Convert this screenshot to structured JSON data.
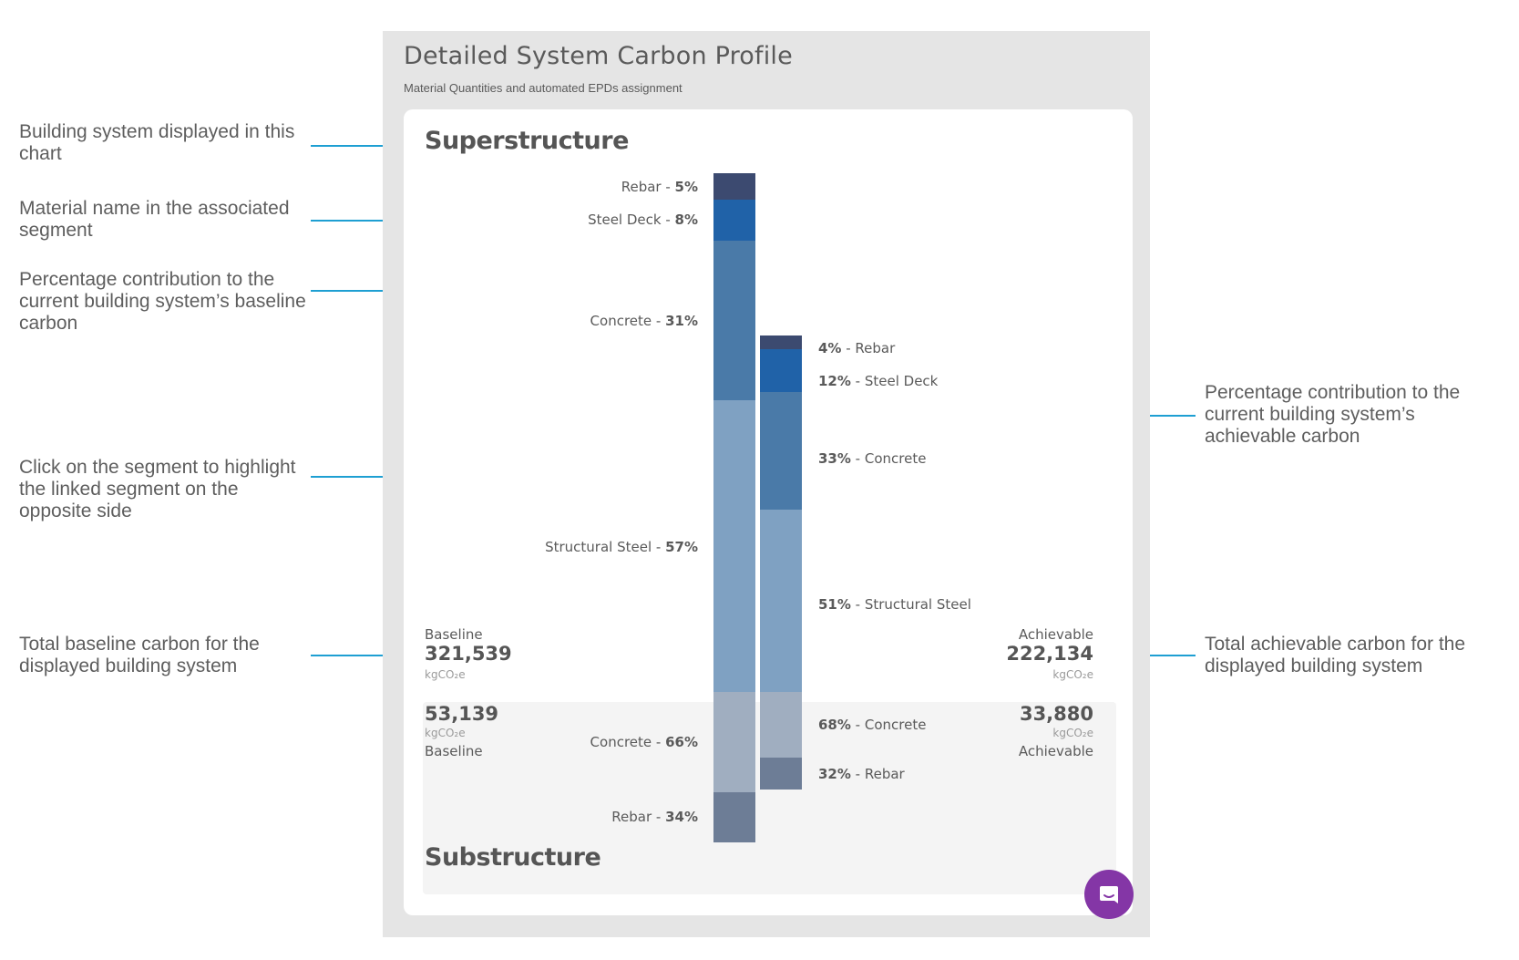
{
  "panel": {
    "title": "Detailed System Carbon Profile",
    "subtitle": "Material Quantities and automated EPDs assignment"
  },
  "superstructure": {
    "title": "Superstructure",
    "baseline": {
      "caption": "Baseline",
      "value": "321,539",
      "unit": "kgCO₂e"
    },
    "achievable": {
      "caption": "Achievable",
      "value": "222,134",
      "unit": "kgCO₂e"
    },
    "baseline_segments": [
      {
        "name": "Rebar",
        "pct": "5%",
        "color": "#3c4a70"
      },
      {
        "name": "Steel Deck",
        "pct": "8%",
        "color": "#2062a8"
      },
      {
        "name": "Concrete",
        "pct": "31%",
        "color": "#4a7aa8"
      },
      {
        "name": "Structural Steel",
        "pct": "57%",
        "color": "#7fa1c2"
      }
    ],
    "achievable_segments": [
      {
        "name": "Rebar",
        "pct": "4%",
        "color": "#3c4a70"
      },
      {
        "name": "Steel Deck",
        "pct": "12%",
        "color": "#2062a8"
      },
      {
        "name": "Concrete",
        "pct": "33%",
        "color": "#4a7aa8"
      },
      {
        "name": "Structural Steel",
        "pct": "51%",
        "color": "#7fa1c2"
      }
    ]
  },
  "substructure": {
    "title": "Substructure",
    "baseline": {
      "caption": "Baseline",
      "value": "53,139",
      "unit": "kgCO₂e"
    },
    "achievable": {
      "caption": "Achievable",
      "value": "33,880",
      "unit": "kgCO₂e"
    },
    "baseline_segments": [
      {
        "name": "Concrete",
        "pct": "66%",
        "color": "#a0aec0"
      },
      {
        "name": "Rebar",
        "pct": "34%",
        "color": "#6d7d96"
      }
    ],
    "achievable_segments": [
      {
        "name": "Concrete",
        "pct": "68%",
        "color": "#a0aec0"
      },
      {
        "name": "Rebar",
        "pct": "32%",
        "color": "#6d7d96"
      }
    ]
  },
  "annotations": {
    "building_system": "Building system displayed in this chart",
    "material_name": "Material name in the associated segment",
    "pct_baseline": "Percentage contribution to the current building system’s baseline carbon",
    "click_segment": "Click on the segment to highlight the linked segment on the opposite side",
    "total_baseline": "Total baseline carbon for the displayed building system",
    "pct_achievable": "Percentage contribution to the current building system’s achievable carbon",
    "total_achievable": "Total achievable carbon for the displayed building system"
  },
  "icons": {
    "chat": "chat-icon"
  },
  "colors": {
    "accent_line": "#1e9fd2",
    "chat_button": "#8436a6"
  }
}
